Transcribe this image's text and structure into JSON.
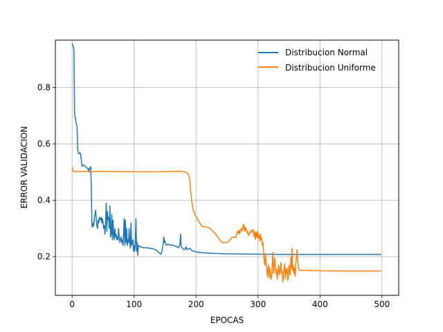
{
  "chart_data": {
    "type": "line",
    "title": "",
    "xlabel": "EPOCAS",
    "ylabel": "ERROR VALIDACION",
    "xlim": [
      -27,
      527
    ],
    "ylim": [
      0.063,
      0.968
    ],
    "xticks": [
      0,
      100,
      200,
      300,
      400,
      500
    ],
    "yticks": [
      0.2,
      0.4,
      0.6,
      0.8
    ],
    "grid": true,
    "legend_position": "top-right",
    "series": [
      {
        "name": "Distribucion Normal",
        "color": "#1f77b4",
        "points": [
          [
            0,
            0.955
          ],
          [
            2,
            0.945
          ],
          [
            3,
            0.93
          ],
          [
            4,
            0.7
          ],
          [
            5,
            0.695
          ],
          [
            6,
            0.68
          ],
          [
            7,
            0.67
          ],
          [
            8,
            0.66
          ],
          [
            9,
            0.58
          ],
          [
            10,
            0.57
          ],
          [
            11,
            0.565
          ],
          [
            12,
            0.567
          ],
          [
            13,
            0.568
          ],
          [
            14,
            0.56
          ],
          [
            15,
            0.54
          ],
          [
            16,
            0.52
          ],
          [
            18,
            0.525
          ],
          [
            20,
            0.523
          ],
          [
            22,
            0.518
          ],
          [
            24,
            0.515
          ],
          [
            26,
            0.51
          ],
          [
            27,
            0.5
          ],
          [
            28,
            0.515
          ],
          [
            29,
            0.512
          ],
          [
            30,
            0.52
          ],
          [
            31,
            0.45
          ],
          [
            32,
            0.31
          ],
          [
            33,
            0.305
          ],
          [
            34,
            0.32
          ],
          [
            35,
            0.31
          ],
          [
            36,
            0.34
          ],
          [
            37,
            0.35
          ],
          [
            38,
            0.365
          ],
          [
            39,
            0.33
          ],
          [
            40,
            0.31
          ],
          [
            41,
            0.3
          ],
          [
            42,
            0.33
          ],
          [
            43,
            0.32
          ],
          [
            44,
            0.34
          ],
          [
            45,
            0.335
          ],
          [
            46,
            0.33
          ],
          [
            47,
            0.34
          ],
          [
            48,
            0.32
          ],
          [
            49,
            0.335
          ],
          [
            50,
            0.32
          ],
          [
            51,
            0.3
          ],
          [
            52,
            0.31
          ],
          [
            53,
            0.28
          ],
          [
            54,
            0.32
          ],
          [
            55,
            0.39
          ],
          [
            56,
            0.29
          ],
          [
            57,
            0.36
          ],
          [
            58,
            0.33
          ],
          [
            59,
            0.34
          ],
          [
            60,
            0.3
          ],
          [
            61,
            0.38
          ],
          [
            62,
            0.27
          ],
          [
            63,
            0.28
          ],
          [
            64,
            0.35
          ],
          [
            65,
            0.26
          ],
          [
            66,
            0.33
          ],
          [
            67,
            0.28
          ],
          [
            68,
            0.26
          ],
          [
            69,
            0.3
          ],
          [
            70,
            0.27
          ],
          [
            71,
            0.28
          ],
          [
            72,
            0.26
          ],
          [
            73,
            0.27
          ],
          [
            74,
            0.26
          ],
          [
            75,
            0.3
          ],
          [
            76,
            0.27
          ],
          [
            77,
            0.25
          ],
          [
            78,
            0.26
          ],
          [
            79,
            0.27
          ],
          [
            80,
            0.25
          ],
          [
            81,
            0.26
          ],
          [
            82,
            0.24
          ],
          [
            83,
            0.28
          ],
          [
            84,
            0.335
          ],
          [
            85,
            0.24
          ],
          [
            86,
            0.33
          ],
          [
            87,
            0.25
          ],
          [
            88,
            0.3
          ],
          [
            89,
            0.24
          ],
          [
            90,
            0.26
          ],
          [
            91,
            0.25
          ],
          [
            92,
            0.3
          ],
          [
            93,
            0.25
          ],
          [
            94,
            0.23
          ],
          [
            95,
            0.32
          ],
          [
            96,
            0.24
          ],
          [
            97,
            0.25
          ],
          [
            98,
            0.26
          ],
          [
            99,
            0.22
          ],
          [
            100,
            0.24
          ],
          [
            101,
            0.22
          ],
          [
            102,
            0.25
          ],
          [
            103,
            0.335
          ],
          [
            104,
            0.22
          ],
          [
            105,
            0.25
          ],
          [
            106,
            0.205
          ],
          [
            107,
            0.24
          ],
          [
            110,
            0.235
          ],
          [
            115,
            0.232
          ],
          [
            120,
            0.232
          ],
          [
            125,
            0.23
          ],
          [
            130,
            0.228
          ],
          [
            135,
            0.225
          ],
          [
            140,
            0.215
          ],
          [
            143,
            0.208
          ],
          [
            145,
            0.22
          ],
          [
            147,
            0.245
          ],
          [
            148,
            0.27
          ],
          [
            149,
            0.25
          ],
          [
            150,
            0.255
          ],
          [
            152,
            0.24
          ],
          [
            155,
            0.245
          ],
          [
            158,
            0.24
          ],
          [
            160,
            0.242
          ],
          [
            163,
            0.24
          ],
          [
            166,
            0.238
          ],
          [
            169,
            0.235
          ],
          [
            172,
            0.232
          ],
          [
            174,
            0.245
          ],
          [
            175,
            0.28
          ],
          [
            176,
            0.235
          ],
          [
            178,
            0.23
          ],
          [
            180,
            0.225
          ],
          [
            182,
            0.226
          ],
          [
            184,
            0.235
          ],
          [
            185,
            0.225
          ],
          [
            188,
            0.228
          ],
          [
            190,
            0.23
          ],
          [
            193,
            0.222
          ],
          [
            196,
            0.22
          ],
          [
            200,
            0.217
          ],
          [
            210,
            0.214
          ],
          [
            225,
            0.212
          ],
          [
            250,
            0.21
          ],
          [
            300,
            0.209
          ],
          [
            350,
            0.208
          ],
          [
            400,
            0.208
          ],
          [
            450,
            0.208
          ],
          [
            499,
            0.208
          ]
        ]
      },
      {
        "name": "Distribucion Uniforme",
        "color": "#ff7f0e",
        "points": [
          [
            0,
            0.518
          ],
          [
            1,
            0.505
          ],
          [
            2,
            0.502
          ],
          [
            5,
            0.502
          ],
          [
            50,
            0.502
          ],
          [
            100,
            0.501
          ],
          [
            150,
            0.501
          ],
          [
            170,
            0.503
          ],
          [
            180,
            0.502
          ],
          [
            185,
            0.498
          ],
          [
            188,
            0.49
          ],
          [
            189,
            0.48
          ],
          [
            190,
            0.47
          ],
          [
            191,
            0.44
          ],
          [
            193,
            0.4
          ],
          [
            195,
            0.37
          ],
          [
            198,
            0.35
          ],
          [
            202,
            0.335
          ],
          [
            206,
            0.32
          ],
          [
            210,
            0.307
          ],
          [
            215,
            0.306
          ],
          [
            220,
            0.304
          ],
          [
            225,
            0.295
          ],
          [
            230,
            0.285
          ],
          [
            235,
            0.27
          ],
          [
            240,
            0.255
          ],
          [
            243,
            0.25
          ],
          [
            248,
            0.25
          ],
          [
            252,
            0.252
          ],
          [
            255,
            0.26
          ],
          [
            258,
            0.268
          ],
          [
            260,
            0.268
          ],
          [
            262,
            0.27
          ],
          [
            264,
            0.268
          ],
          [
            265,
            0.275
          ],
          [
            266,
            0.282
          ],
          [
            267,
            0.29
          ],
          [
            268,
            0.285
          ],
          [
            269,
            0.295
          ],
          [
            270,
            0.28
          ],
          [
            271,
            0.29
          ],
          [
            272,
            0.295
          ],
          [
            273,
            0.3
          ],
          [
            274,
            0.29
          ],
          [
            275,
            0.3
          ],
          [
            276,
            0.31
          ],
          [
            277,
            0.315
          ],
          [
            278,
            0.29
          ],
          [
            279,
            0.305
          ],
          [
            280,
            0.295
          ],
          [
            281,
            0.3
          ],
          [
            282,
            0.285
          ],
          [
            283,
            0.29
          ],
          [
            284,
            0.28
          ],
          [
            285,
            0.275
          ],
          [
            286,
            0.282
          ],
          [
            287,
            0.288
          ],
          [
            288,
            0.29
          ],
          [
            289,
            0.285
          ],
          [
            290,
            0.295
          ],
          [
            291,
            0.29
          ],
          [
            292,
            0.297
          ],
          [
            293,
            0.28
          ],
          [
            294,
            0.27
          ],
          [
            295,
            0.29
          ],
          [
            296,
            0.26
          ],
          [
            297,
            0.285
          ],
          [
            298,
            0.27
          ],
          [
            299,
            0.29
          ],
          [
            300,
            0.265
          ],
          [
            301,
            0.28
          ],
          [
            302,
            0.27
          ],
          [
            303,
            0.255
          ],
          [
            304,
            0.28
          ],
          [
            305,
            0.26
          ],
          [
            306,
            0.265
          ],
          [
            307,
            0.24
          ],
          [
            308,
            0.25
          ],
          [
            309,
            0.215
          ],
          [
            310,
            0.19
          ],
          [
            311,
            0.17
          ],
          [
            312,
            0.21
          ],
          [
            313,
            0.18
          ],
          [
            314,
            0.16
          ],
          [
            315,
            0.13
          ],
          [
            316,
            0.15
          ],
          [
            317,
            0.17
          ],
          [
            318,
            0.125
          ],
          [
            319,
            0.16
          ],
          [
            320,
            0.14
          ],
          [
            321,
            0.12
          ],
          [
            322,
            0.13
          ],
          [
            323,
            0.17
          ],
          [
            324,
            0.215
          ],
          [
            325,
            0.14
          ],
          [
            326,
            0.16
          ],
          [
            327,
            0.195
          ],
          [
            328,
            0.17
          ],
          [
            329,
            0.14
          ],
          [
            330,
            0.155
          ],
          [
            331,
            0.12
          ],
          [
            332,
            0.14
          ],
          [
            333,
            0.17
          ],
          [
            334,
            0.15
          ],
          [
            335,
            0.135
          ],
          [
            336,
            0.16
          ],
          [
            337,
            0.18
          ],
          [
            338,
            0.14
          ],
          [
            339,
            0.15
          ],
          [
            340,
            0.11
          ],
          [
            341,
            0.13
          ],
          [
            342,
            0.16
          ],
          [
            343,
            0.175
          ],
          [
            344,
            0.12
          ],
          [
            345,
            0.155
          ],
          [
            346,
            0.14
          ],
          [
            347,
            0.16
          ],
          [
            348,
            0.115
          ],
          [
            349,
            0.13
          ],
          [
            350,
            0.17
          ],
          [
            351,
            0.15
          ],
          [
            352,
            0.135
          ],
          [
            353,
            0.2
          ],
          [
            354,
            0.16
          ],
          [
            355,
            0.23
          ],
          [
            356,
            0.15
          ],
          [
            357,
            0.17
          ],
          [
            358,
            0.14
          ],
          [
            359,
            0.16
          ],
          [
            360,
            0.13
          ],
          [
            361,
            0.175
          ],
          [
            362,
            0.2
          ],
          [
            363,
            0.225
          ],
          [
            364,
            0.185
          ],
          [
            365,
            0.17
          ],
          [
            366,
            0.155
          ],
          [
            367,
            0.152
          ],
          [
            375,
            0.151
          ],
          [
            400,
            0.15
          ],
          [
            450,
            0.149
          ],
          [
            499,
            0.149
          ]
        ]
      }
    ]
  }
}
